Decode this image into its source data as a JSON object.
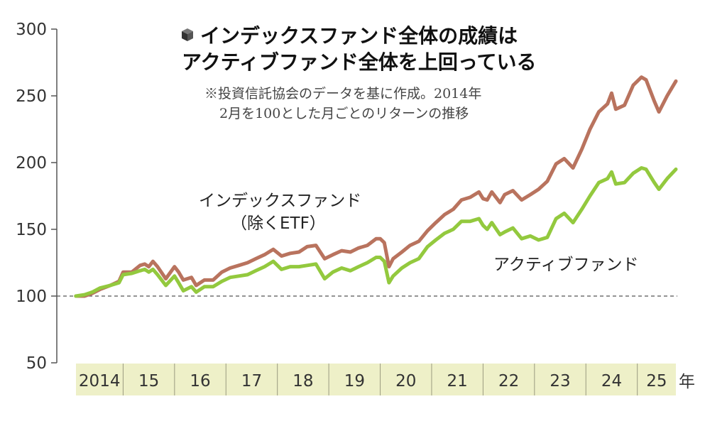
{
  "chart_data": {
    "type": "line",
    "title": [
      "インデックスファンド全体の成績は",
      "アクティブファンド全体を上回っている"
    ],
    "note": [
      "※投資信託協会のデータを基に作成。2014年",
      "2月を100とした月ごとのリターンの推移"
    ],
    "year_unit": "年",
    "ylim": [
      50,
      300
    ],
    "yticks": [
      "300",
      "250",
      "200",
      "150",
      "100",
      "50"
    ],
    "reference_line": 100,
    "years": [
      "2014",
      "15",
      "16",
      "17",
      "18",
      "19",
      "20",
      "21",
      "22",
      "23",
      "24",
      "25"
    ],
    "x_start": 2014.083,
    "x_end": 2025.75,
    "series": [
      {
        "name": "インデックスファンド",
        "label_lines": [
          "インデックスファンド",
          "（除くETF）"
        ],
        "color": "#b9735e",
        "points": [
          [
            2014.08,
            100
          ],
          [
            2014.25,
            100
          ],
          [
            2014.4,
            102
          ],
          [
            2014.55,
            105
          ],
          [
            2014.75,
            108
          ],
          [
            2014.92,
            111
          ],
          [
            2015.0,
            118
          ],
          [
            2015.17,
            118
          ],
          [
            2015.33,
            123
          ],
          [
            2015.42,
            124
          ],
          [
            2015.5,
            122
          ],
          [
            2015.58,
            126
          ],
          [
            2015.67,
            122
          ],
          [
            2015.83,
            113
          ],
          [
            2016.0,
            122
          ],
          [
            2016.08,
            118
          ],
          [
            2016.17,
            112
          ],
          [
            2016.33,
            114
          ],
          [
            2016.42,
            108
          ],
          [
            2016.58,
            112
          ],
          [
            2016.75,
            112
          ],
          [
            2016.92,
            118
          ],
          [
            2017.08,
            121
          ],
          [
            2017.25,
            123
          ],
          [
            2017.42,
            125
          ],
          [
            2017.58,
            128
          ],
          [
            2017.75,
            131
          ],
          [
            2017.92,
            135
          ],
          [
            2018.08,
            130
          ],
          [
            2018.25,
            132
          ],
          [
            2018.42,
            133
          ],
          [
            2018.58,
            137
          ],
          [
            2018.75,
            138
          ],
          [
            2018.92,
            128
          ],
          [
            2019.08,
            131
          ],
          [
            2019.25,
            134
          ],
          [
            2019.42,
            133
          ],
          [
            2019.58,
            136
          ],
          [
            2019.75,
            138
          ],
          [
            2019.92,
            143
          ],
          [
            2020.0,
            143
          ],
          [
            2020.08,
            140
          ],
          [
            2020.17,
            122
          ],
          [
            2020.25,
            128
          ],
          [
            2020.42,
            133
          ],
          [
            2020.58,
            138
          ],
          [
            2020.75,
            141
          ],
          [
            2020.92,
            149
          ],
          [
            2021.08,
            155
          ],
          [
            2021.25,
            161
          ],
          [
            2021.42,
            165
          ],
          [
            2021.58,
            172
          ],
          [
            2021.75,
            174
          ],
          [
            2021.92,
            178
          ],
          [
            2022.0,
            173
          ],
          [
            2022.08,
            172
          ],
          [
            2022.17,
            178
          ],
          [
            2022.33,
            170
          ],
          [
            2022.42,
            176
          ],
          [
            2022.58,
            179
          ],
          [
            2022.75,
            172
          ],
          [
            2022.92,
            176
          ],
          [
            2023.08,
            180
          ],
          [
            2023.25,
            186
          ],
          [
            2023.42,
            199
          ],
          [
            2023.58,
            203
          ],
          [
            2023.75,
            196
          ],
          [
            2023.92,
            210
          ],
          [
            2024.08,
            225
          ],
          [
            2024.25,
            238
          ],
          [
            2024.42,
            244
          ],
          [
            2024.5,
            252
          ],
          [
            2024.58,
            240
          ],
          [
            2024.75,
            243
          ],
          [
            2024.92,
            258
          ],
          [
            2025.08,
            264
          ],
          [
            2025.17,
            262
          ],
          [
            2025.33,
            246
          ],
          [
            2025.42,
            238
          ],
          [
            2025.58,
            250
          ],
          [
            2025.75,
            261
          ]
        ]
      },
      {
        "name": "アクティブファンド",
        "label_lines": [
          "アクティブファンド"
        ],
        "color": "#93c93e",
        "points": [
          [
            2014.08,
            100
          ],
          [
            2014.25,
            101
          ],
          [
            2014.4,
            103
          ],
          [
            2014.55,
            106
          ],
          [
            2014.75,
            108
          ],
          [
            2014.92,
            110
          ],
          [
            2015.0,
            116
          ],
          [
            2015.17,
            117
          ],
          [
            2015.33,
            119
          ],
          [
            2015.42,
            120
          ],
          [
            2015.5,
            118
          ],
          [
            2015.58,
            120
          ],
          [
            2015.67,
            116
          ],
          [
            2015.83,
            108
          ],
          [
            2016.0,
            115
          ],
          [
            2016.08,
            110
          ],
          [
            2016.17,
            104
          ],
          [
            2016.33,
            107
          ],
          [
            2016.42,
            103
          ],
          [
            2016.58,
            107
          ],
          [
            2016.75,
            107
          ],
          [
            2016.92,
            111
          ],
          [
            2017.08,
            114
          ],
          [
            2017.25,
            115
          ],
          [
            2017.42,
            116
          ],
          [
            2017.58,
            119
          ],
          [
            2017.75,
            122
          ],
          [
            2017.92,
            126
          ],
          [
            2018.08,
            120
          ],
          [
            2018.25,
            122
          ],
          [
            2018.42,
            122
          ],
          [
            2018.58,
            123
          ],
          [
            2018.75,
            124
          ],
          [
            2018.92,
            113
          ],
          [
            2019.08,
            118
          ],
          [
            2019.25,
            121
          ],
          [
            2019.42,
            119
          ],
          [
            2019.58,
            122
          ],
          [
            2019.75,
            125
          ],
          [
            2019.92,
            129
          ],
          [
            2020.0,
            129
          ],
          [
            2020.08,
            126
          ],
          [
            2020.17,
            110
          ],
          [
            2020.25,
            115
          ],
          [
            2020.42,
            121
          ],
          [
            2020.58,
            125
          ],
          [
            2020.75,
            128
          ],
          [
            2020.92,
            137
          ],
          [
            2021.08,
            142
          ],
          [
            2021.25,
            147
          ],
          [
            2021.42,
            150
          ],
          [
            2021.58,
            156
          ],
          [
            2021.75,
            156
          ],
          [
            2021.92,
            158
          ],
          [
            2022.0,
            153
          ],
          [
            2022.08,
            150
          ],
          [
            2022.17,
            155
          ],
          [
            2022.33,
            146
          ],
          [
            2022.42,
            148
          ],
          [
            2022.58,
            151
          ],
          [
            2022.75,
            143
          ],
          [
            2022.92,
            145
          ],
          [
            2023.08,
            142
          ],
          [
            2023.25,
            144
          ],
          [
            2023.42,
            158
          ],
          [
            2023.58,
            162
          ],
          [
            2023.75,
            155
          ],
          [
            2023.92,
            165
          ],
          [
            2024.08,
            175
          ],
          [
            2024.25,
            185
          ],
          [
            2024.42,
            188
          ],
          [
            2024.5,
            193
          ],
          [
            2024.58,
            184
          ],
          [
            2024.75,
            185
          ],
          [
            2024.92,
            192
          ],
          [
            2025.08,
            196
          ],
          [
            2025.17,
            195
          ],
          [
            2025.33,
            185
          ],
          [
            2025.42,
            180
          ],
          [
            2025.58,
            188
          ],
          [
            2025.75,
            195
          ]
        ]
      }
    ]
  }
}
